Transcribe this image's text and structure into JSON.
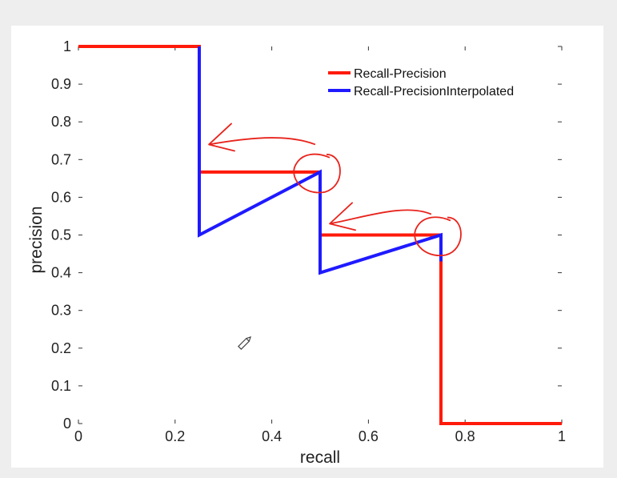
{
  "chart_data": {
    "type": "line",
    "title": "",
    "xlabel": "recall",
    "ylabel": "precision",
    "xlim": [
      0,
      1
    ],
    "ylim": [
      0,
      1
    ],
    "x_ticks": [
      "0",
      "0.2",
      "0.4",
      "0.6",
      "0.8",
      "1"
    ],
    "y_ticks": [
      "0",
      "0.1",
      "0.2",
      "0.3",
      "0.4",
      "0.5",
      "0.6",
      "0.7",
      "0.8",
      "0.9",
      "1"
    ],
    "grid": false,
    "legend": "top-right",
    "series": [
      {
        "name": "Recall-Precision",
        "color": "#ff1a0a",
        "x": [
          0,
          0.25,
          0.25,
          0.5,
          0.5,
          0.75,
          0.75,
          1
        ],
        "y": [
          1,
          1,
          0.667,
          0.667,
          0.5,
          0.5,
          0,
          0
        ]
      },
      {
        "name": "Recall-PrecisionInterpolated",
        "color": "#1f1aff",
        "x": [
          0.25,
          0.25,
          0.5,
          0.5,
          0.75,
          0.75
        ],
        "y": [
          1,
          0.5,
          0.667,
          0.4,
          0.5,
          0.43
        ]
      }
    ],
    "annotations": {
      "color": "#e8231c",
      "circles": [
        {
          "x": 0.5,
          "y": 0.667
        },
        {
          "x": 0.75,
          "y": 0.5
        }
      ],
      "arrows": [
        {
          "from": {
            "x": 0.49,
            "y": 0.74
          },
          "to": {
            "x": 0.27,
            "y": 0.74
          }
        },
        {
          "from": {
            "x": 0.73,
            "y": 0.555
          },
          "to": {
            "x": 0.52,
            "y": 0.53
          }
        }
      ]
    }
  }
}
